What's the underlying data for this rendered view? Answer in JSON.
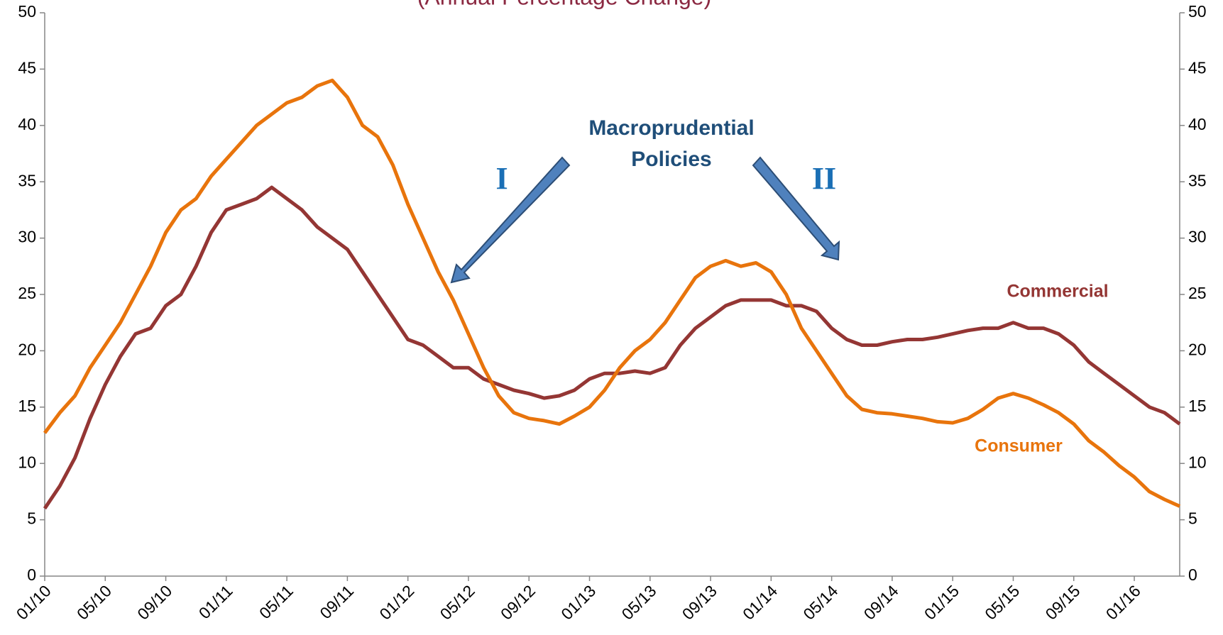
{
  "chart_data": {
    "type": "line",
    "title": "(Annual Percentage Change)",
    "categories": [
      "01/10",
      null,
      null,
      null,
      "05/10",
      null,
      null,
      null,
      "09/10",
      null,
      null,
      null,
      "01/11",
      null,
      null,
      null,
      "05/11",
      null,
      null,
      null,
      "09/11",
      null,
      null,
      null,
      "01/12",
      null,
      null,
      null,
      "05/12",
      null,
      null,
      null,
      "09/12",
      null,
      null,
      null,
      "01/13",
      null,
      null,
      null,
      "05/13",
      null,
      null,
      null,
      "09/13",
      null,
      null,
      null,
      "01/14",
      null,
      null,
      null,
      "05/14",
      null,
      null,
      null,
      "09/14",
      null,
      null,
      null,
      "01/15",
      null,
      null,
      null,
      "05/15",
      null,
      null,
      null,
      "09/15",
      null,
      null,
      null,
      "01/16",
      null,
      null,
      null
    ],
    "series": [
      {
        "name": "Commercial",
        "color": "#943634",
        "values": [
          6,
          8,
          10.5,
          14,
          17,
          19.5,
          21.5,
          22,
          24,
          25,
          27.5,
          30.5,
          32.5,
          33,
          33.5,
          34.5,
          33.5,
          32.5,
          31,
          30,
          29,
          27,
          25,
          23,
          21,
          20.5,
          19.5,
          18.5,
          18.5,
          17.5,
          17,
          16.5,
          16.2,
          15.8,
          16,
          16.5,
          17.5,
          18,
          18,
          18.2,
          18,
          18.5,
          20.5,
          22,
          23,
          24,
          24.5,
          24.5,
          24.5,
          24,
          24,
          23.5,
          22,
          21,
          20.5,
          20.5,
          20.8,
          21,
          21,
          21.2,
          21.5,
          21.8,
          22,
          22,
          22.5,
          22,
          22,
          21.5,
          20.5,
          19,
          18,
          17,
          16,
          15,
          14.5,
          13.5
        ]
      },
      {
        "name": "Consumer",
        "color": "#e8740c",
        "values": [
          12.7,
          14.5,
          16,
          18.5,
          20.5,
          22.5,
          25,
          27.5,
          30.5,
          32.5,
          33.5,
          35.5,
          37,
          38.5,
          40,
          41,
          42,
          42.5,
          43.5,
          44,
          42.5,
          40,
          39,
          36.5,
          33,
          30,
          27,
          24.5,
          21.5,
          18.5,
          16,
          14.5,
          14,
          13.8,
          13.5,
          14.2,
          15,
          16.5,
          18.5,
          20,
          21,
          22.5,
          24.5,
          26.5,
          27.5,
          28,
          27.5,
          27.8,
          27,
          25,
          22,
          20,
          18,
          16,
          14.8,
          14.5,
          14.4,
          14.2,
          14,
          13.7,
          13.6,
          14,
          14.8,
          15.8,
          16.2,
          15.8,
          15.2,
          14.5,
          13.5,
          12,
          11,
          9.8,
          8.8,
          7.5,
          6.8,
          6.2
        ]
      }
    ],
    "annotations": [
      {
        "text": "Macroprudential",
        "color": "#1f4e79"
      },
      {
        "text": "Policies",
        "color": "#1f4e79"
      },
      {
        "text": "I",
        "color": "#1a6fb5"
      },
      {
        "text": "II",
        "color": "#1a6fb5"
      }
    ],
    "ylim": [
      0,
      50
    ],
    "yticks": [
      0,
      5,
      10,
      15,
      20,
      25,
      30,
      35,
      40,
      45,
      50
    ],
    "y2lim": [
      0,
      50
    ],
    "y2ticks": [
      0,
      5,
      10,
      15,
      20,
      25,
      30,
      35,
      40,
      45,
      50
    ],
    "grid": false
  }
}
